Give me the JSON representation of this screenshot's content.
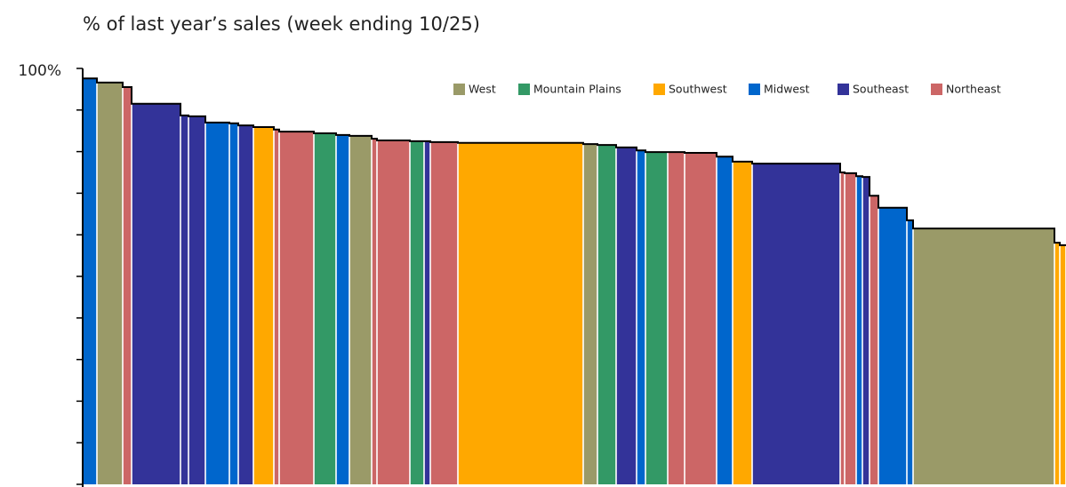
{
  "chart_data": {
    "type": "variable-width-bar",
    "title": "% of last year’s sales (week ending 10/25)",
    "ylim": [
      0,
      100
    ],
    "yticks": [
      0,
      10,
      20,
      30,
      40,
      50,
      60,
      70,
      80,
      90,
      {
        "value": 100,
        "label": "100%"
      }
    ],
    "regions": [
      {
        "name": "West",
        "color": "#9a9a68"
      },
      {
        "name": "Mountain Plains",
        "color": "#339966"
      },
      {
        "name": "Southwest",
        "color": "#ffa800"
      },
      {
        "name": "Midwest",
        "color": "#0066cc"
      },
      {
        "name": "Southeast",
        "color": "#333399"
      },
      {
        "name": "Northeast",
        "color": "#cc6666"
      }
    ],
    "bar_regions": [
      "Midwest",
      "West",
      "Northeast",
      "Southeast",
      "Southeast",
      "Southeast",
      "Midwest",
      "Midwest",
      "Southeast",
      "Southwest",
      "Northeast",
      "Northeast",
      "Mountain Plains",
      "Midwest",
      "West",
      "Northeast",
      "Northeast",
      "Mountain Plains",
      "Southeast",
      "Northeast",
      "Southwest",
      "West",
      "Mountain Plains",
      "Southeast",
      "Midwest",
      "Mountain Plains",
      "Northeast",
      "Northeast",
      "Midwest",
      "Southwest",
      "Southeast",
      "Northeast",
      "Northeast",
      "Midwest",
      "Southeast",
      "Northeast",
      "Midwest",
      "Midwest",
      "West",
      "Southwest",
      "Southwest"
    ],
    "widths": [
      16,
      29,
      10,
      55,
      9,
      19,
      27,
      10,
      17,
      23,
      6,
      39,
      25,
      15,
      25,
      6,
      37,
      16,
      7,
      31,
      141,
      16,
      21,
      23,
      10,
      25,
      19,
      36,
      18,
      22,
      99,
      5,
      13,
      7,
      8,
      10,
      32,
      7,
      159,
      6,
      7
    ],
    "values": [
      97.6,
      96.6,
      95.5,
      91.5,
      88.7,
      88.5,
      87.0,
      86.8,
      86.3,
      85.9,
      85.3,
      84.8,
      84.4,
      84.0,
      83.8,
      83.1,
      82.7,
      82.5,
      82.5,
      82.3,
      82.1,
      81.8,
      81.6,
      81.0,
      80.3,
      79.9,
      79.9,
      79.7,
      78.8,
      77.6,
      77.1,
      75.0,
      74.8,
      74.1,
      73.9,
      69.4,
      66.5,
      63.5,
      61.5,
      58.1,
      57.5
    ]
  }
}
